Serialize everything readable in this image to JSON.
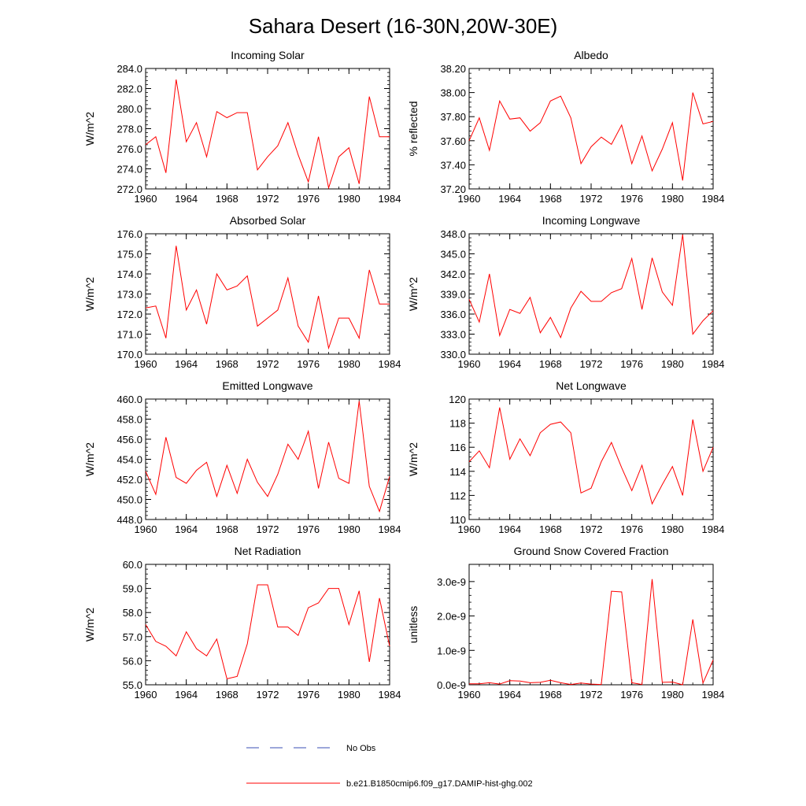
{
  "figure": {
    "title": "Sahara Desert (16-30N,20W-30E)"
  },
  "legend": {
    "entries": [
      {
        "label": "No Obs",
        "color": "#3a4fb5",
        "style": "dashed"
      },
      {
        "label": "b.e21.B1850cmip6.f09_g17.DAMIP-hist-ghg.002",
        "color": "#ff0000",
        "style": "solid"
      }
    ]
  },
  "chart_data": [
    {
      "type": "line",
      "title": "Incoming Solar",
      "ylabel": "W/m^2",
      "xlim": [
        1960,
        1984
      ],
      "ylim": [
        272,
        284
      ],
      "xticks": [
        1960,
        1964,
        1968,
        1972,
        1976,
        1980,
        1984
      ],
      "xtick_labels": [
        "1960",
        "1964",
        "1968",
        "1972",
        "1976",
        "1980",
        "1984"
      ],
      "yticks": [
        272,
        274,
        276,
        278,
        280,
        282,
        284
      ],
      "ytick_labels": [
        "272.0",
        "274.0",
        "276.0",
        "278.0",
        "280.0",
        "282.0",
        "284.0"
      ],
      "series": [
        {
          "color": "#ff0000",
          "x": [
            1960,
            1961,
            1962,
            1963,
            1964,
            1965,
            1966,
            1967,
            1968,
            1969,
            1970,
            1971,
            1972,
            1973,
            1974,
            1975,
            1976,
            1977,
            1978,
            1979,
            1980,
            1981,
            1982,
            1983,
            1984
          ],
          "values": [
            276.4,
            277.2,
            273.6,
            282.9,
            276.7,
            278.6,
            275.2,
            279.7,
            279.1,
            279.6,
            279.6,
            273.9,
            275.2,
            276.3,
            278.6,
            275.4,
            272.7,
            277.2,
            272.1,
            275.2,
            276.1,
            272.5,
            281.2,
            277.2,
            277.2
          ]
        }
      ]
    },
    {
      "type": "line",
      "title": "Albedo",
      "ylabel": "% reflected",
      "xlim": [
        1960,
        1984
      ],
      "ylim": [
        37.2,
        38.2
      ],
      "xticks": [
        1960,
        1964,
        1968,
        1972,
        1976,
        1980,
        1984
      ],
      "xtick_labels": [
        "1960",
        "1964",
        "1968",
        "1972",
        "1976",
        "1980",
        "1984"
      ],
      "yticks": [
        37.2,
        37.4,
        37.6,
        37.8,
        38.0,
        38.2
      ],
      "ytick_labels": [
        "37.20",
        "37.40",
        "37.60",
        "37.80",
        "38.00",
        "38.20"
      ],
      "series": [
        {
          "color": "#ff0000",
          "x": [
            1960,
            1961,
            1962,
            1963,
            1964,
            1965,
            1966,
            1967,
            1968,
            1969,
            1970,
            1971,
            1972,
            1973,
            1974,
            1975,
            1976,
            1977,
            1978,
            1979,
            1980,
            1981,
            1982,
            1983,
            1984
          ],
          "values": [
            37.6,
            37.79,
            37.52,
            37.93,
            37.78,
            37.79,
            37.68,
            37.75,
            37.93,
            37.97,
            37.79,
            37.41,
            37.55,
            37.63,
            37.57,
            37.73,
            37.41,
            37.64,
            37.35,
            37.53,
            37.75,
            37.27,
            38.0,
            37.74,
            37.76
          ]
        }
      ]
    },
    {
      "type": "line",
      "title": "Absorbed Solar",
      "ylabel": "W/m^2",
      "xlim": [
        1960,
        1984
      ],
      "ylim": [
        170,
        176
      ],
      "xticks": [
        1960,
        1964,
        1968,
        1972,
        1976,
        1980,
        1984
      ],
      "xtick_labels": [
        "1960",
        "1964",
        "1968",
        "1972",
        "1976",
        "1980",
        "1984"
      ],
      "yticks": [
        170,
        171,
        172,
        173,
        174,
        175,
        176
      ],
      "ytick_labels": [
        "170.0",
        "171.0",
        "172.0",
        "173.0",
        "174.0",
        "175.0",
        "176.0"
      ],
      "series": [
        {
          "color": "#ff0000",
          "x": [
            1960,
            1961,
            1962,
            1963,
            1964,
            1965,
            1966,
            1967,
            1968,
            1969,
            1970,
            1971,
            1972,
            1973,
            1974,
            1975,
            1976,
            1977,
            1978,
            1979,
            1980,
            1981,
            1982,
            1983,
            1984
          ],
          "values": [
            172.3,
            172.4,
            170.8,
            175.4,
            172.2,
            173.2,
            171.5,
            174.0,
            173.2,
            173.4,
            173.9,
            171.4,
            171.8,
            172.2,
            173.8,
            171.4,
            170.6,
            172.9,
            170.3,
            171.8,
            171.8,
            170.8,
            174.2,
            172.5,
            172.5
          ]
        }
      ]
    },
    {
      "type": "line",
      "title": "Incoming Longwave",
      "ylabel": "W/m^2",
      "xlim": [
        1960,
        1984
      ],
      "ylim": [
        330,
        348
      ],
      "xticks": [
        1960,
        1964,
        1968,
        1972,
        1976,
        1980,
        1984
      ],
      "xtick_labels": [
        "1960",
        "1964",
        "1968",
        "1972",
        "1976",
        "1980",
        "1984"
      ],
      "yticks": [
        330,
        333,
        336,
        339,
        342,
        345,
        348
      ],
      "ytick_labels": [
        "330.0",
        "333.0",
        "336.0",
        "339.0",
        "342.0",
        "345.0",
        "348.0"
      ],
      "series": [
        {
          "color": "#ff0000",
          "x": [
            1960,
            1961,
            1962,
            1963,
            1964,
            1965,
            1966,
            1967,
            1968,
            1969,
            1970,
            1971,
            1972,
            1973,
            1974,
            1975,
            1976,
            1977,
            1978,
            1979,
            1980,
            1981,
            1982,
            1983,
            1984
          ],
          "values": [
            338.2,
            334.8,
            342.0,
            332.8,
            336.7,
            336.1,
            338.5,
            333.2,
            335.5,
            332.5,
            336.9,
            339.4,
            337.9,
            337.9,
            339.2,
            339.8,
            344.3,
            336.7,
            344.4,
            339.3,
            337.3,
            347.9,
            333.0,
            335.0,
            336.5
          ]
        }
      ]
    },
    {
      "type": "line",
      "title": "Emitted Longwave",
      "ylabel": "W/m^2",
      "xlim": [
        1960,
        1984
      ],
      "ylim": [
        448,
        460
      ],
      "xticks": [
        1960,
        1964,
        1968,
        1972,
        1976,
        1980,
        1984
      ],
      "xtick_labels": [
        "1960",
        "1964",
        "1968",
        "1972",
        "1976",
        "1980",
        "1984"
      ],
      "yticks": [
        448,
        450,
        452,
        454,
        456,
        458,
        460
      ],
      "ytick_labels": [
        "448.0",
        "450.0",
        "452.0",
        "454.0",
        "456.0",
        "458.0",
        "460.0"
      ],
      "series": [
        {
          "color": "#ff0000",
          "x": [
            1960,
            1961,
            1962,
            1963,
            1964,
            1965,
            1966,
            1967,
            1968,
            1969,
            1970,
            1971,
            1972,
            1973,
            1974,
            1975,
            1976,
            1977,
            1978,
            1979,
            1980,
            1981,
            1982,
            1983,
            1984
          ],
          "values": [
            452.8,
            450.5,
            456.2,
            452.2,
            451.6,
            452.9,
            453.7,
            450.3,
            453.4,
            450.6,
            454.0,
            451.7,
            450.3,
            452.5,
            455.5,
            454.0,
            456.8,
            451.1,
            455.7,
            452.1,
            451.6,
            459.8,
            451.3,
            448.8,
            452.3
          ]
        }
      ]
    },
    {
      "type": "line",
      "title": "Net Longwave",
      "ylabel": "W/m^2",
      "xlim": [
        1960,
        1984
      ],
      "ylim": [
        110,
        120
      ],
      "xticks": [
        1960,
        1964,
        1968,
        1972,
        1976,
        1980,
        1984
      ],
      "xtick_labels": [
        "1960",
        "1964",
        "1968",
        "1972",
        "1976",
        "1980",
        "1984"
      ],
      "yticks": [
        110,
        112,
        114,
        116,
        118,
        120
      ],
      "ytick_labels": [
        "110",
        "112",
        "114",
        "116",
        "118",
        "120"
      ],
      "series": [
        {
          "color": "#ff0000",
          "x": [
            1960,
            1961,
            1962,
            1963,
            1964,
            1965,
            1966,
            1967,
            1968,
            1969,
            1970,
            1971,
            1972,
            1973,
            1974,
            1975,
            1976,
            1977,
            1978,
            1979,
            1980,
            1981,
            1982,
            1983,
            1984
          ],
          "values": [
            114.8,
            115.7,
            114.3,
            119.3,
            115.0,
            116.7,
            115.3,
            117.2,
            117.9,
            118.1,
            117.2,
            112.2,
            112.6,
            114.8,
            116.4,
            114.3,
            112.4,
            114.5,
            111.3,
            112.9,
            114.4,
            112.0,
            118.3,
            114.0,
            116.0
          ]
        }
      ]
    },
    {
      "type": "line",
      "title": "Net Radiation",
      "ylabel": "W/m^2",
      "xlim": [
        1960,
        1984
      ],
      "ylim": [
        55,
        60
      ],
      "xticks": [
        1960,
        1964,
        1968,
        1972,
        1976,
        1980,
        1984
      ],
      "xtick_labels": [
        "1960",
        "1964",
        "1968",
        "1972",
        "1976",
        "1980",
        "1984"
      ],
      "yticks": [
        55,
        56,
        57,
        58,
        59,
        60
      ],
      "ytick_labels": [
        "55.0",
        "56.0",
        "57.0",
        "58.0",
        "59.0",
        "60.0"
      ],
      "series": [
        {
          "color": "#ff0000",
          "x": [
            1960,
            1961,
            1962,
            1963,
            1964,
            1965,
            1966,
            1967,
            1968,
            1969,
            1970,
            1971,
            1972,
            1973,
            1974,
            1975,
            1976,
            1977,
            1978,
            1979,
            1980,
            1981,
            1982,
            1983,
            1984
          ],
          "values": [
            57.5,
            56.8,
            56.6,
            56.2,
            57.2,
            56.5,
            56.2,
            56.9,
            55.25,
            55.35,
            56.7,
            59.15,
            59.15,
            57.4,
            57.4,
            57.05,
            58.2,
            58.4,
            59.0,
            59.0,
            57.5,
            58.9,
            55.95,
            58.6,
            56.6
          ]
        }
      ]
    },
    {
      "type": "line",
      "title": "Ground Snow Covered Fraction",
      "ylabel": "unitless",
      "xlim": [
        1960,
        1984
      ],
      "ylim": [
        0,
        3.5e-09
      ],
      "xticks": [
        1960,
        1964,
        1968,
        1972,
        1976,
        1980,
        1984
      ],
      "xtick_labels": [
        "1960",
        "1964",
        "1968",
        "1972",
        "1976",
        "1980",
        "1984"
      ],
      "yticks": [
        0,
        1e-09,
        2e-09,
        3e-09
      ],
      "ytick_labels": [
        "0.0e-9",
        "1.0e-9",
        "2.0e-9",
        "3.0e-9"
      ],
      "series": [
        {
          "color": "#ff0000",
          "x": [
            1960,
            1961,
            1962,
            1963,
            1964,
            1965,
            1966,
            1967,
            1968,
            1969,
            1970,
            1971,
            1972,
            1973,
            1974,
            1975,
            1976,
            1977,
            1978,
            1979,
            1980,
            1981,
            1982,
            1983,
            1984
          ],
          "values": [
            3e-11,
            3e-11,
            6e-11,
            2e-11,
            1.2e-10,
            1.1e-10,
            6e-11,
            7e-11,
            1.3e-10,
            6e-11,
            1e-11,
            5e-11,
            2e-11,
            1e-11,
            2.72e-09,
            2.7e-09,
            6e-11,
            1e-11,
            3.07e-09,
            7e-11,
            8e-11,
            0.0,
            1.9e-09,
            5e-11,
            7.2e-10
          ]
        }
      ]
    }
  ]
}
